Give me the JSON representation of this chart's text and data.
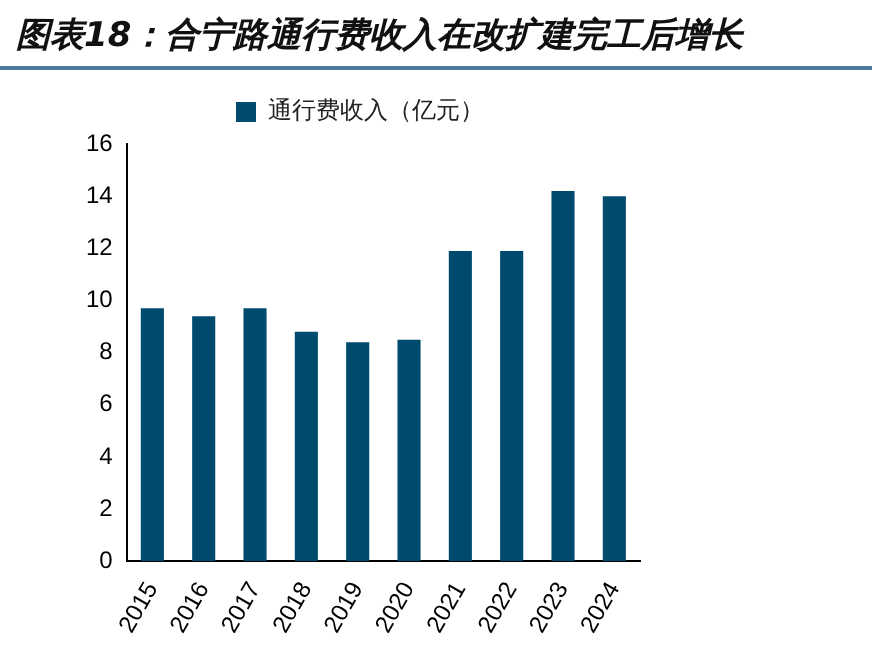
{
  "chart_data": {
    "type": "bar",
    "title": "图表18：合宁路通行费收入在改扩建完工后增长",
    "categories": [
      "2015",
      "2016",
      "2017",
      "2018",
      "2019",
      "2020",
      "2021",
      "2022",
      "2023",
      "2024"
    ],
    "series": [
      {
        "name": "通行费收入（亿元）",
        "color": "#004a6e",
        "values": [
          9.7,
          9.4,
          9.7,
          8.8,
          8.4,
          8.5,
          11.9,
          11.9,
          14.2,
          14.0
        ]
      }
    ],
    "ylim": [
      0,
      16
    ],
    "yticks": [
      0,
      2,
      4,
      6,
      8,
      10,
      12,
      14,
      16
    ],
    "grid": false,
    "legend": "top"
  }
}
